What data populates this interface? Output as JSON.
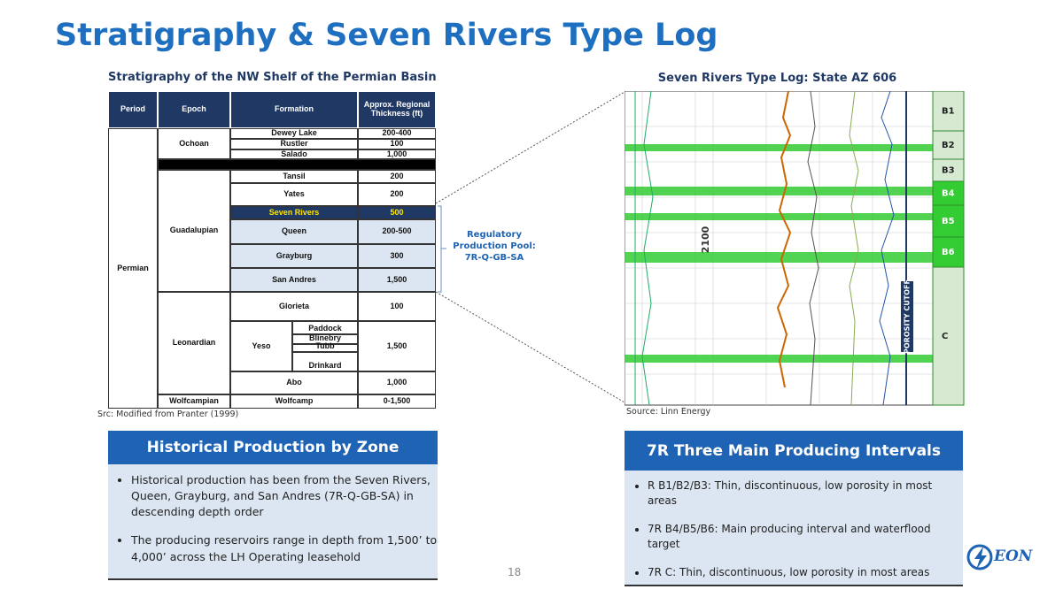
{
  "title": "Stratigraphy & Seven Rivers Type Log",
  "table": {
    "title": "Stratigraphy of the NW Shelf of the Permian Basin",
    "header": [
      "Period",
      "Epoch",
      "Formation",
      "Approx. Regional Thickness (ft)"
    ],
    "period": "Permian",
    "epochs": [
      "Ochoan",
      "Guadalupian",
      "Leonardian",
      "Wolfcampian"
    ],
    "rows": [
      {
        "formation": "Dewey Lake",
        "thickness": "200-400"
      },
      {
        "formation": "Rustler",
        "thickness": "100"
      },
      {
        "formation": "Salado",
        "thickness": "1,000"
      },
      {
        "formation": "Tansil",
        "thickness": "200"
      },
      {
        "formation": "Yates",
        "thickness": "200"
      },
      {
        "formation": "Seven Rivers",
        "thickness": "500"
      },
      {
        "formation": "Queen",
        "thickness": "200-500"
      },
      {
        "formation": "Grayburg",
        "thickness": "300"
      },
      {
        "formation": "San Andres",
        "thickness": "1,500"
      },
      {
        "formation": "Glorieta",
        "thickness": "100"
      },
      {
        "formation": "Abo",
        "thickness": "1,000"
      },
      {
        "formation": "Wolfcamp",
        "thickness": "0-1,500"
      }
    ],
    "yeso": {
      "label": "Yeso",
      "members": [
        "Paddock",
        "Blinebry",
        "Tubb",
        "Drinkard"
      ],
      "thickness": "1,500"
    },
    "source": "Src: Modified from Pranter (1999)"
  },
  "pool_label": "Regulatory Production Pool: 7R-Q-GB-SA",
  "log": {
    "title": "Seven Rivers Type Log: State AZ 606",
    "zones": [
      "B1",
      "B2",
      "B3",
      "B4",
      "B5",
      "B6",
      "C"
    ],
    "depth_label": "2100",
    "cutoff_label": "POROSITY CUTOFF",
    "source": "Source: Linn Energy"
  },
  "left_box": {
    "title": "Historical Production by Zone",
    "bullets": [
      "Historical production has been from the Seven Rivers, Queen, Grayburg, and San Andres (7R-Q-GB-SA) in descending depth order",
      "The producing reservoirs range in depth from 1,500’ to 4,000’ across the LH Operating leasehold"
    ]
  },
  "right_box": {
    "title": "7R Three Main Producing Intervals",
    "bullets": [
      "R B1/B2/B3: Thin, discontinuous, low porosity in most areas",
      "7R B4/B5/B6: Main producing interval and waterflood target",
      "7R C: Thin, discontinuous, low porosity in most areas"
    ]
  },
  "page_number": "18",
  "logo": "EON"
}
